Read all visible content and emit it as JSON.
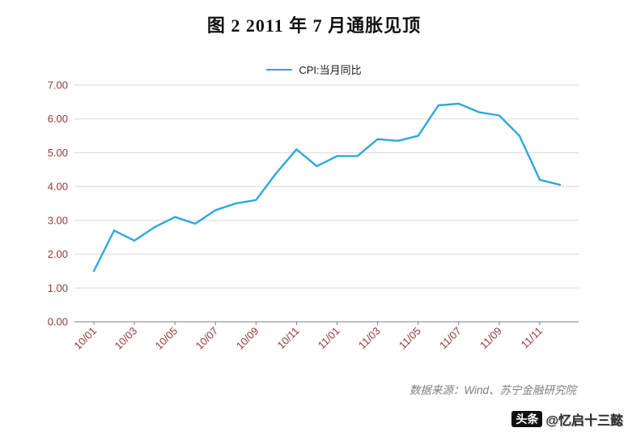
{
  "title": "图 2 2011 年 7 月通胀见顶",
  "legend": {
    "label": "CPI:当月同比",
    "color": "#2fa8dc"
  },
  "source": "数据来源：Wind、苏宁金融研究院",
  "watermark": {
    "badge": "头条",
    "name": "@忆启十三懿"
  },
  "colors": {
    "line": "#2fa8dc",
    "gridline": "#d9d9d9",
    "axis": "#7f7f7f",
    "tick_label": "#953735"
  },
  "chart_data": {
    "type": "line",
    "title": "图 2 2011 年 7 月通胀见顶",
    "xlabel": "",
    "ylabel": "",
    "ylim": [
      0,
      7
    ],
    "ytick_step": 1,
    "xtick_every": 2,
    "grid": true,
    "legend_position": "top",
    "x": [
      "10/01",
      "10/02",
      "10/03",
      "10/04",
      "10/05",
      "10/06",
      "10/07",
      "10/08",
      "10/09",
      "10/10",
      "10/11",
      "10/12",
      "11/01",
      "11/02",
      "11/03",
      "11/04",
      "11/05",
      "11/06",
      "11/07",
      "11/08",
      "11/09",
      "11/10",
      "11/11",
      "11/12"
    ],
    "series": [
      {
        "name": "CPI:当月同比",
        "values": [
          1.5,
          2.7,
          2.4,
          2.8,
          3.1,
          2.9,
          3.3,
          3.5,
          3.6,
          4.4,
          5.1,
          4.6,
          4.9,
          4.9,
          5.4,
          5.35,
          5.5,
          6.4,
          6.45,
          6.2,
          6.1,
          5.5,
          4.2,
          4.05
        ]
      }
    ]
  }
}
